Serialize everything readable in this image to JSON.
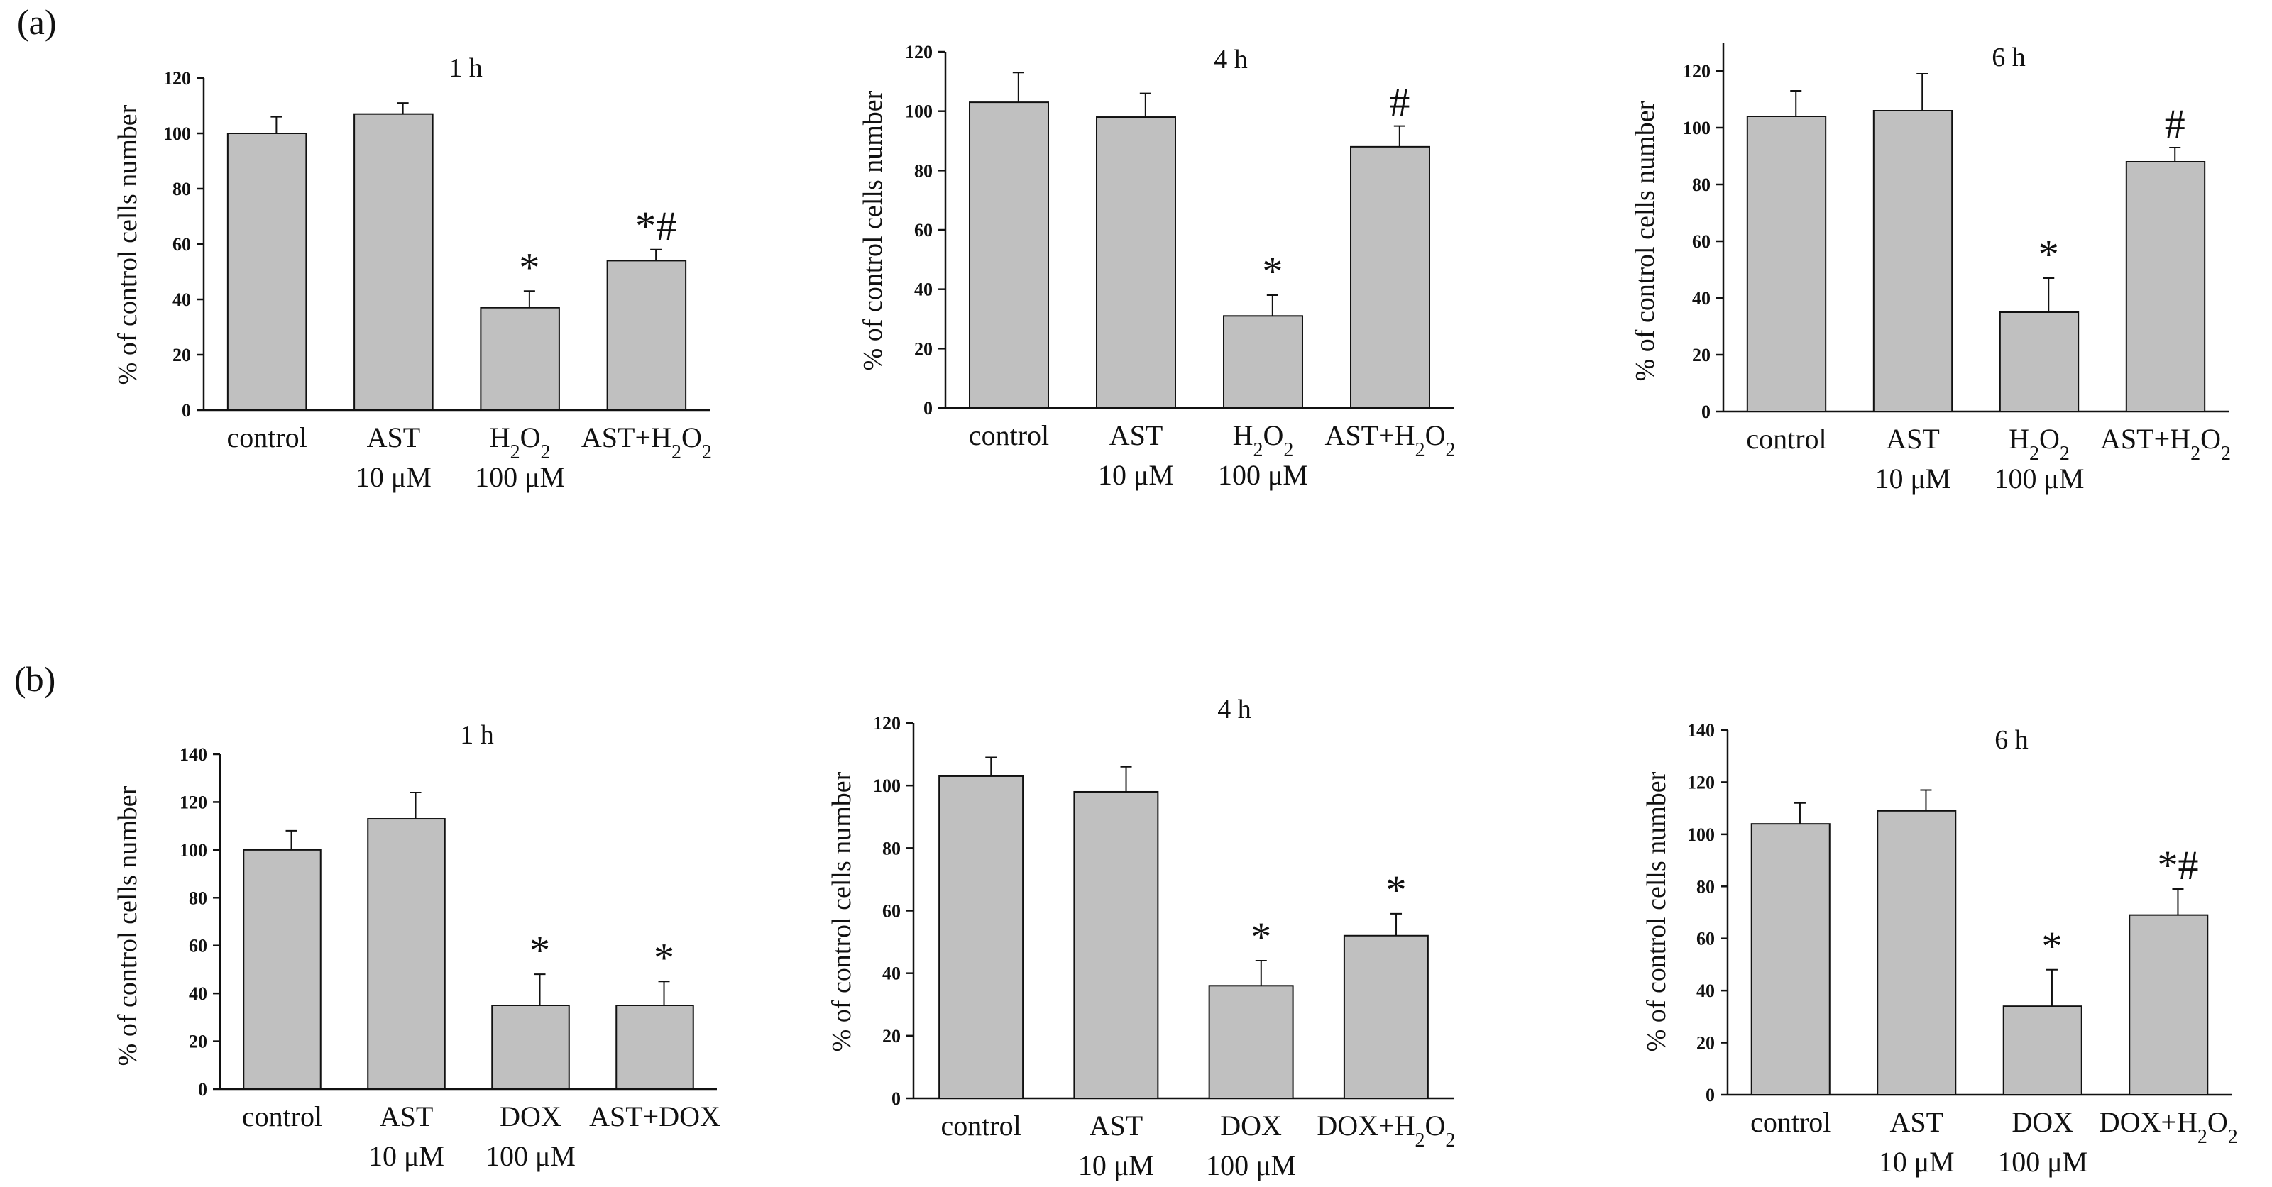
{
  "figure": {
    "panels": [
      {
        "label": "(a)"
      },
      {
        "label": "(b)"
      }
    ]
  },
  "chart_data": [
    {
      "type": "bar",
      "panel": "(a)",
      "title": "1 h",
      "ylabel": "% of control cells number",
      "xlabel": "",
      "ylim": [
        0,
        120
      ],
      "yticks": [
        0,
        20,
        40,
        60,
        80,
        100,
        120
      ],
      "categories": [
        "control",
        "AST",
        "H2O2",
        "AST+H2O2"
      ],
      "category_labels": [
        [
          [
            {
              "t": "control"
            }
          ]
        ],
        [
          [
            {
              "t": "AST"
            }
          ],
          [
            {
              "t": "10 μM"
            }
          ]
        ],
        [
          [
            {
              "t": "H"
            },
            {
              "t": "2",
              "sub": true
            },
            {
              "t": "O"
            },
            {
              "t": "2",
              "sub": true
            }
          ],
          [
            {
              "t": "100 μM"
            }
          ]
        ],
        [
          [
            {
              "t": "AST+H"
            },
            {
              "t": "2",
              "sub": true
            },
            {
              "t": "O"
            },
            {
              "t": "2",
              "sub": true
            }
          ]
        ]
      ],
      "values": [
        100,
        107,
        37,
        54
      ],
      "errors": [
        6,
        4,
        6,
        4
      ],
      "annotations": [
        "",
        "",
        "*",
        "*#"
      ],
      "bar_color": "#c0c0c0"
    },
    {
      "type": "bar",
      "panel": "(a)",
      "title": "4 h",
      "ylabel": "% of control cells number",
      "xlabel": "",
      "ylim": [
        0,
        120
      ],
      "yticks": [
        0,
        20,
        40,
        60,
        80,
        100,
        120
      ],
      "categories": [
        "control",
        "AST",
        "H2O2",
        "AST+H2O2"
      ],
      "category_labels": [
        [
          [
            {
              "t": "control"
            }
          ]
        ],
        [
          [
            {
              "t": "AST"
            }
          ],
          [
            {
              "t": "10 μM"
            }
          ]
        ],
        [
          [
            {
              "t": "H"
            },
            {
              "t": "2",
              "sub": true
            },
            {
              "t": "O"
            },
            {
              "t": "2",
              "sub": true
            }
          ],
          [
            {
              "t": "100 μM"
            }
          ]
        ],
        [
          [
            {
              "t": "AST+H"
            },
            {
              "t": "2",
              "sub": true
            },
            {
              "t": "O"
            },
            {
              "t": "2",
              "sub": true
            }
          ]
        ]
      ],
      "values": [
        103,
        98,
        31,
        88
      ],
      "errors": [
        10,
        8,
        7,
        7
      ],
      "annotations": [
        "",
        "",
        "*",
        "#"
      ],
      "bar_color": "#c0c0c0"
    },
    {
      "type": "bar",
      "panel": "(a)",
      "title": "6 h",
      "ylabel": "% of control cells number",
      "xlabel": "",
      "ylim": [
        0,
        130
      ],
      "yticks": [
        0,
        20,
        40,
        60,
        80,
        100,
        120
      ],
      "categories": [
        "control",
        "AST",
        "H2O2",
        "AST+H2O2"
      ],
      "category_labels": [
        [
          [
            {
              "t": "control"
            }
          ]
        ],
        [
          [
            {
              "t": "AST"
            }
          ],
          [
            {
              "t": "10 μM"
            }
          ]
        ],
        [
          [
            {
              "t": "H"
            },
            {
              "t": "2",
              "sub": true
            },
            {
              "t": "O"
            },
            {
              "t": "2",
              "sub": true
            }
          ],
          [
            {
              "t": "100 μM"
            }
          ]
        ],
        [
          [
            {
              "t": "AST+H"
            },
            {
              "t": "2",
              "sub": true
            },
            {
              "t": "O"
            },
            {
              "t": "2",
              "sub": true
            }
          ]
        ]
      ],
      "values": [
        104,
        106,
        35,
        88
      ],
      "errors": [
        9,
        13,
        12,
        5
      ],
      "annotations": [
        "",
        "",
        "*",
        "#"
      ],
      "bar_color": "#c0c0c0"
    },
    {
      "type": "bar",
      "panel": "(b)",
      "title": "1 h",
      "ylabel": "% of control cells number",
      "xlabel": "",
      "ylim": [
        0,
        140
      ],
      "yticks": [
        0,
        20,
        40,
        60,
        80,
        100,
        120,
        140
      ],
      "categories": [
        "control",
        "AST",
        "DOX",
        "AST+DOX"
      ],
      "category_labels": [
        [
          [
            {
              "t": "control"
            }
          ]
        ],
        [
          [
            {
              "t": "AST"
            }
          ],
          [
            {
              "t": "10 μM"
            }
          ]
        ],
        [
          [
            {
              "t": "DOX"
            }
          ],
          [
            {
              "t": "100 μM"
            }
          ]
        ],
        [
          [
            {
              "t": "AST+DOX"
            }
          ]
        ]
      ],
      "values": [
        100,
        113,
        35,
        35
      ],
      "errors": [
        8,
        11,
        13,
        10
      ],
      "annotations": [
        "",
        "",
        "*",
        "*"
      ],
      "bar_color": "#c0c0c0"
    },
    {
      "type": "bar",
      "panel": "(b)",
      "title": "4 h",
      "ylabel": "% of control cells number",
      "xlabel": "",
      "ylim": [
        0,
        120
      ],
      "yticks": [
        0,
        20,
        40,
        60,
        80,
        100,
        120
      ],
      "categories": [
        "control",
        "AST",
        "DOX",
        "DOX+H2O2"
      ],
      "category_labels": [
        [
          [
            {
              "t": "control"
            }
          ]
        ],
        [
          [
            {
              "t": "AST"
            }
          ],
          [
            {
              "t": "10 μM"
            }
          ]
        ],
        [
          [
            {
              "t": "DOX"
            }
          ],
          [
            {
              "t": "100 μM"
            }
          ]
        ],
        [
          [
            {
              "t": "DOX+H"
            },
            {
              "t": "2",
              "sub": true
            },
            {
              "t": "O"
            },
            {
              "t": "2",
              "sub": true
            }
          ]
        ]
      ],
      "values": [
        103,
        98,
        36,
        52
      ],
      "errors": [
        6,
        8,
        8,
        7
      ],
      "annotations": [
        "",
        "",
        "*",
        "*"
      ],
      "bar_color": "#c0c0c0"
    },
    {
      "type": "bar",
      "panel": "(b)",
      "title": "6 h",
      "ylabel": "% of control cells number",
      "xlabel": "",
      "ylim": [
        0,
        140
      ],
      "yticks": [
        0,
        20,
        40,
        60,
        80,
        100,
        120,
        140
      ],
      "categories": [
        "control",
        "AST",
        "DOX",
        "DOX+H2O2"
      ],
      "category_labels": [
        [
          [
            {
              "t": "control"
            }
          ]
        ],
        [
          [
            {
              "t": "AST"
            }
          ],
          [
            {
              "t": "10 μM"
            }
          ]
        ],
        [
          [
            {
              "t": "DOX"
            }
          ],
          [
            {
              "t": "100 μM"
            }
          ]
        ],
        [
          [
            {
              "t": "DOX+H"
            },
            {
              "t": "2",
              "sub": true
            },
            {
              "t": "O"
            },
            {
              "t": "2",
              "sub": true
            }
          ]
        ]
      ],
      "values": [
        104,
        109,
        34,
        69
      ],
      "errors": [
        8,
        8,
        14,
        10
      ],
      "annotations": [
        "",
        "",
        "*",
        "*#"
      ],
      "bar_color": "#c0c0c0"
    }
  ]
}
